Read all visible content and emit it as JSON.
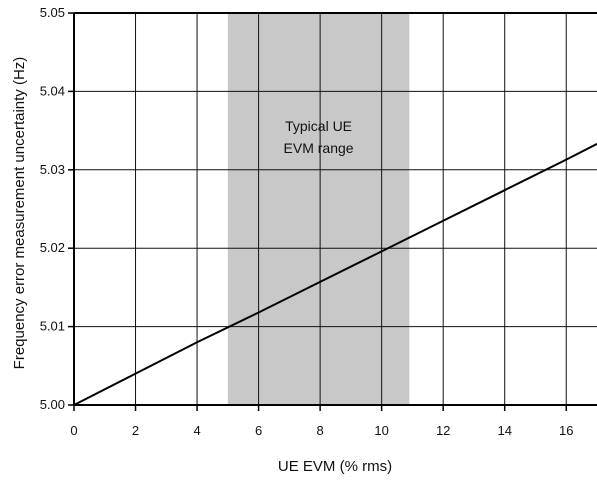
{
  "chart_data": {
    "type": "line",
    "title": "",
    "xlabel": "UE EVM (% rms)",
    "ylabel": "Frequency error measurement uncertainty (Hz)",
    "xlim": [
      0,
      17
    ],
    "ylim": [
      5.0,
      5.05
    ],
    "x_ticks": [
      0,
      2,
      4,
      6,
      8,
      10,
      12,
      14,
      16
    ],
    "x_tick_labels": [
      "0",
      "2",
      "4",
      "6",
      "8",
      "10",
      "12",
      "14",
      "16"
    ],
    "y_ticks": [
      5.0,
      5.01,
      5.02,
      5.03,
      5.04,
      5.05
    ],
    "y_tick_labels": [
      "5.00",
      "5.01",
      "5.02",
      "5.03",
      "5.04",
      "5.05"
    ],
    "grid": true,
    "series": [
      {
        "x": [
          0,
          2,
          4,
          6,
          8,
          10,
          12,
          14,
          16,
          17
        ],
        "y": [
          5.0,
          5.004,
          5.008,
          5.0118,
          5.0157,
          5.0196,
          5.0235,
          5.0274,
          5.0313,
          5.0333
        ],
        "color": "#000000"
      }
    ],
    "annotations": [
      {
        "type": "shaded-range",
        "x_start": 5,
        "x_end": 10.9,
        "color": "#c8c8c8",
        "label_lines": [
          "Typical UE",
          "EVM range"
        ]
      }
    ]
  }
}
